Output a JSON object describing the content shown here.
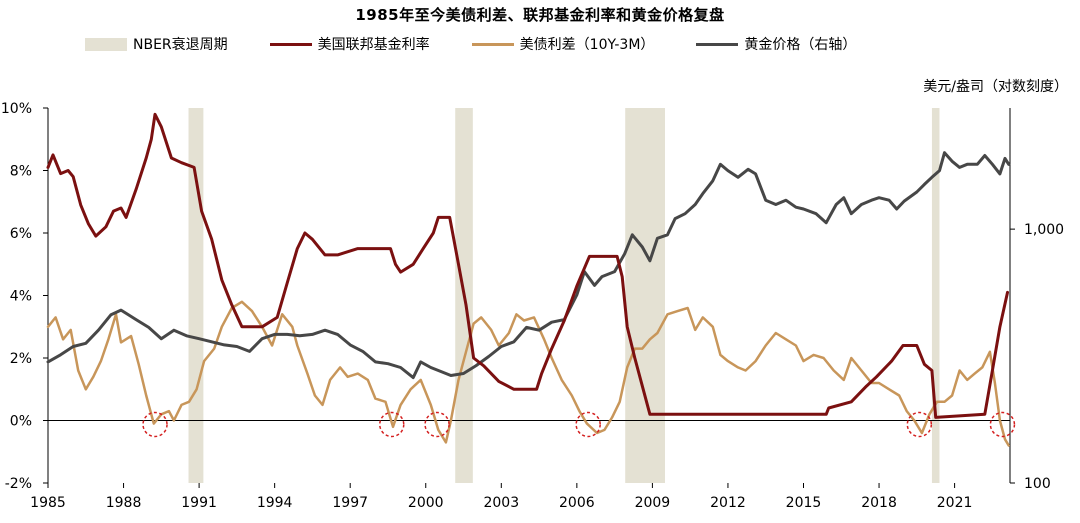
{
  "title": "1985年至今美债利差、联邦基金利率和黄金价格复盘",
  "legend": {
    "nber": "NBER衰退周期",
    "fedfunds": "美国联邦基金利率",
    "spread": "美债利差（10Y-3M）",
    "gold": "黄金价格（右轴）"
  },
  "right_axis_unit": "美元/盎司（对数刻度）",
  "colors": {
    "nber": "#e4e1d3",
    "fedfunds": "#7b1010",
    "spread": "#c8965a",
    "gold": "#474747",
    "circle": "#d42020"
  },
  "chart_data": {
    "type": "line",
    "title": "1985年至今美债利差、联邦基金利率和黄金价格复盘",
    "x_range": [
      1985,
      2023.2
    ],
    "x_ticks": [
      "1985",
      "1988",
      "1991",
      "1994",
      "1997",
      "2000",
      "2003",
      "2006",
      "2009",
      "2012",
      "2015",
      "2018",
      "2021"
    ],
    "y_left": {
      "range": [
        -2,
        10
      ],
      "unit": "%",
      "ticks": [
        "10%",
        "8%",
        "6%",
        "4%",
        "2%",
        "0%",
        "-2%"
      ]
    },
    "y_right": {
      "range": [
        100,
        3000
      ],
      "scale": "log",
      "ticks": [
        "1,000",
        "100"
      ]
    },
    "recessions": [
      [
        1990.58,
        1991.17
      ],
      [
        2001.17,
        2001.87
      ],
      [
        2007.92,
        2009.5
      ],
      [
        2020.1,
        2020.4
      ]
    ],
    "inversion_circles": [
      1989.25,
      1998.65,
      2000.45,
      2006.45,
      2019.6,
      2022.9
    ],
    "series": [
      {
        "name": "美国联邦基金利率",
        "axis": "left",
        "points": [
          [
            1985,
            8.1
          ],
          [
            1985.2,
            8.5
          ],
          [
            1985.5,
            7.9
          ],
          [
            1985.8,
            8.0
          ],
          [
            1986.0,
            7.8
          ],
          [
            1986.3,
            6.9
          ],
          [
            1986.6,
            6.3
          ],
          [
            1986.9,
            5.9
          ],
          [
            1987.3,
            6.2
          ],
          [
            1987.6,
            6.7
          ],
          [
            1987.9,
            6.8
          ],
          [
            1988.1,
            6.5
          ],
          [
            1988.5,
            7.4
          ],
          [
            1988.9,
            8.4
          ],
          [
            1989.1,
            9.0
          ],
          [
            1989.25,
            9.8
          ],
          [
            1989.5,
            9.4
          ],
          [
            1989.9,
            8.4
          ],
          [
            1990.3,
            8.25
          ],
          [
            1990.8,
            8.1
          ],
          [
            1991.1,
            6.7
          ],
          [
            1991.5,
            5.8
          ],
          [
            1991.9,
            4.5
          ],
          [
            1992.3,
            3.7
          ],
          [
            1992.7,
            3.0
          ],
          [
            1993.5,
            3.0
          ],
          [
            1994.1,
            3.3
          ],
          [
            1994.5,
            4.4
          ],
          [
            1994.9,
            5.5
          ],
          [
            1995.2,
            6.0
          ],
          [
            1995.5,
            5.8
          ],
          [
            1996.0,
            5.3
          ],
          [
            1996.5,
            5.3
          ],
          [
            1997.3,
            5.5
          ],
          [
            1998.6,
            5.5
          ],
          [
            1998.8,
            5.0
          ],
          [
            1999.0,
            4.75
          ],
          [
            1999.5,
            5.0
          ],
          [
            1999.9,
            5.5
          ],
          [
            2000.3,
            6.0
          ],
          [
            2000.5,
            6.5
          ],
          [
            2000.95,
            6.5
          ],
          [
            2001.3,
            5.0
          ],
          [
            2001.6,
            3.7
          ],
          [
            2001.9,
            2.0
          ],
          [
            2002.3,
            1.75
          ],
          [
            2002.9,
            1.25
          ],
          [
            2003.5,
            1.0
          ],
          [
            2004.4,
            1.0
          ],
          [
            2004.6,
            1.5
          ],
          [
            2005.0,
            2.3
          ],
          [
            2005.5,
            3.2
          ],
          [
            2006.0,
            4.3
          ],
          [
            2006.5,
            5.25
          ],
          [
            2007.6,
            5.25
          ],
          [
            2007.8,
            4.6
          ],
          [
            2008.0,
            3.0
          ],
          [
            2008.3,
            2.0
          ],
          [
            2008.9,
            0.2
          ],
          [
            2015.9,
            0.2
          ],
          [
            2016.0,
            0.4
          ],
          [
            2016.9,
            0.6
          ],
          [
            2017.5,
            1.1
          ],
          [
            2017.9,
            1.4
          ],
          [
            2018.5,
            1.9
          ],
          [
            2018.95,
            2.4
          ],
          [
            2019.5,
            2.4
          ],
          [
            2019.8,
            1.8
          ],
          [
            2020.1,
            1.6
          ],
          [
            2020.25,
            0.1
          ],
          [
            2022.2,
            0.2
          ],
          [
            2022.5,
            1.6
          ],
          [
            2022.8,
            3.0
          ],
          [
            2023.1,
            4.1
          ]
        ]
      },
      {
        "name": "美债利差（10Y-3M）",
        "axis": "left",
        "points": [
          [
            1985,
            3.0
          ],
          [
            1985.3,
            3.3
          ],
          [
            1985.6,
            2.6
          ],
          [
            1985.9,
            2.9
          ],
          [
            1986.2,
            1.6
          ],
          [
            1986.5,
            1.0
          ],
          [
            1986.8,
            1.4
          ],
          [
            1987.1,
            1.9
          ],
          [
            1987.4,
            2.6
          ],
          [
            1987.7,
            3.4
          ],
          [
            1987.9,
            2.5
          ],
          [
            1988.3,
            2.7
          ],
          [
            1988.6,
            1.8
          ],
          [
            1988.9,
            0.8
          ],
          [
            1989.2,
            -0.1
          ],
          [
            1989.5,
            0.2
          ],
          [
            1989.8,
            0.3
          ],
          [
            1990.0,
            0.0
          ],
          [
            1990.3,
            0.5
          ],
          [
            1990.6,
            0.6
          ],
          [
            1990.9,
            1.0
          ],
          [
            1991.2,
            1.9
          ],
          [
            1991.6,
            2.3
          ],
          [
            1991.9,
            3.0
          ],
          [
            1992.3,
            3.6
          ],
          [
            1992.7,
            3.8
          ],
          [
            1993.1,
            3.5
          ],
          [
            1993.5,
            3.0
          ],
          [
            1993.9,
            2.4
          ],
          [
            1994.3,
            3.4
          ],
          [
            1994.7,
            3.0
          ],
          [
            1994.9,
            2.4
          ],
          [
            1995.3,
            1.5
          ],
          [
            1995.6,
            0.8
          ],
          [
            1995.9,
            0.5
          ],
          [
            1996.2,
            1.3
          ],
          [
            1996.6,
            1.7
          ],
          [
            1996.9,
            1.4
          ],
          [
            1997.3,
            1.5
          ],
          [
            1997.7,
            1.3
          ],
          [
            1998.0,
            0.7
          ],
          [
            1998.4,
            0.6
          ],
          [
            1998.7,
            -0.2
          ],
          [
            1999.0,
            0.5
          ],
          [
            1999.4,
            1.0
          ],
          [
            1999.8,
            1.3
          ],
          [
            2000.2,
            0.5
          ],
          [
            2000.5,
            -0.3
          ],
          [
            2000.8,
            -0.7
          ],
          [
            2001.0,
            0.0
          ],
          [
            2001.3,
            1.3
          ],
          [
            2001.6,
            2.2
          ],
          [
            2001.9,
            3.1
          ],
          [
            2002.2,
            3.3
          ],
          [
            2002.6,
            2.9
          ],
          [
            2002.9,
            2.4
          ],
          [
            2003.3,
            2.8
          ],
          [
            2003.6,
            3.4
          ],
          [
            2003.9,
            3.2
          ],
          [
            2004.3,
            3.3
          ],
          [
            2004.7,
            2.6
          ],
          [
            2005.0,
            2.0
          ],
          [
            2005.4,
            1.3
          ],
          [
            2005.8,
            0.8
          ],
          [
            2006.1,
            0.3
          ],
          [
            2006.4,
            -0.1
          ],
          [
            2006.8,
            -0.4
          ],
          [
            2007.1,
            -0.3
          ],
          [
            2007.4,
            0.1
          ],
          [
            2007.7,
            0.6
          ],
          [
            2008.0,
            1.7
          ],
          [
            2008.3,
            2.3
          ],
          [
            2008.6,
            2.3
          ],
          [
            2008.9,
            2.6
          ],
          [
            2009.2,
            2.8
          ],
          [
            2009.6,
            3.4
          ],
          [
            2010.0,
            3.5
          ],
          [
            2010.4,
            3.6
          ],
          [
            2010.7,
            2.9
          ],
          [
            2011.0,
            3.3
          ],
          [
            2011.4,
            3.0
          ],
          [
            2011.7,
            2.1
          ],
          [
            2012.0,
            1.9
          ],
          [
            2012.4,
            1.7
          ],
          [
            2012.7,
            1.6
          ],
          [
            2013.1,
            1.9
          ],
          [
            2013.5,
            2.4
          ],
          [
            2013.9,
            2.8
          ],
          [
            2014.3,
            2.6
          ],
          [
            2014.7,
            2.4
          ],
          [
            2015.0,
            1.9
          ],
          [
            2015.4,
            2.1
          ],
          [
            2015.8,
            2.0
          ],
          [
            2016.2,
            1.6
          ],
          [
            2016.6,
            1.3
          ],
          [
            2016.9,
            2.0
          ],
          [
            2017.3,
            1.6
          ],
          [
            2017.7,
            1.2
          ],
          [
            2018.0,
            1.2
          ],
          [
            2018.4,
            1.0
          ],
          [
            2018.8,
            0.8
          ],
          [
            2019.1,
            0.3
          ],
          [
            2019.4,
            0.0
          ],
          [
            2019.7,
            -0.4
          ],
          [
            2020.0,
            0.2
          ],
          [
            2020.3,
            0.6
          ],
          [
            2020.6,
            0.6
          ],
          [
            2020.9,
            0.8
          ],
          [
            2021.2,
            1.6
          ],
          [
            2021.5,
            1.3
          ],
          [
            2021.8,
            1.5
          ],
          [
            2022.1,
            1.7
          ],
          [
            2022.4,
            2.2
          ],
          [
            2022.6,
            1.2
          ],
          [
            2022.8,
            0.0
          ],
          [
            2023.0,
            -0.6
          ],
          [
            2023.15,
            -0.8
          ]
        ]
      },
      {
        "name": "黄金价格（右轴）",
        "axis": "right",
        "points": [
          [
            1985,
            300
          ],
          [
            1985.5,
            320
          ],
          [
            1986.0,
            345
          ],
          [
            1986.5,
            355
          ],
          [
            1987.0,
            400
          ],
          [
            1987.5,
            460
          ],
          [
            1987.9,
            480
          ],
          [
            1988.5,
            440
          ],
          [
            1989.0,
            410
          ],
          [
            1989.5,
            370
          ],
          [
            1990.0,
            400
          ],
          [
            1990.5,
            380
          ],
          [
            1991.0,
            370
          ],
          [
            1991.5,
            360
          ],
          [
            1992.0,
            350
          ],
          [
            1992.5,
            345
          ],
          [
            1993.0,
            330
          ],
          [
            1993.5,
            370
          ],
          [
            1994.0,
            385
          ],
          [
            1994.5,
            385
          ],
          [
            1995.0,
            380
          ],
          [
            1995.5,
            385
          ],
          [
            1996.0,
            400
          ],
          [
            1996.5,
            385
          ],
          [
            1997.0,
            350
          ],
          [
            1997.5,
            330
          ],
          [
            1998.0,
            300
          ],
          [
            1998.5,
            295
          ],
          [
            1999.0,
            285
          ],
          [
            1999.5,
            260
          ],
          [
            1999.8,
            300
          ],
          [
            2000.2,
            285
          ],
          [
            2000.6,
            275
          ],
          [
            2001.0,
            265
          ],
          [
            2001.5,
            270
          ],
          [
            2002.0,
            290
          ],
          [
            2002.5,
            315
          ],
          [
            2003.0,
            345
          ],
          [
            2003.5,
            360
          ],
          [
            2004.0,
            410
          ],
          [
            2004.5,
            400
          ],
          [
            2005.0,
            430
          ],
          [
            2005.5,
            440
          ],
          [
            2006.0,
            550
          ],
          [
            2006.3,
            680
          ],
          [
            2006.7,
            600
          ],
          [
            2007.0,
            650
          ],
          [
            2007.5,
            680
          ],
          [
            2007.9,
            800
          ],
          [
            2008.2,
            950
          ],
          [
            2008.6,
            850
          ],
          [
            2008.9,
            750
          ],
          [
            2009.2,
            920
          ],
          [
            2009.6,
            950
          ],
          [
            2009.9,
            1100
          ],
          [
            2010.3,
            1150
          ],
          [
            2010.7,
            1250
          ],
          [
            2011.0,
            1380
          ],
          [
            2011.4,
            1550
          ],
          [
            2011.7,
            1800
          ],
          [
            2012.0,
            1700
          ],
          [
            2012.4,
            1600
          ],
          [
            2012.8,
            1720
          ],
          [
            2013.1,
            1650
          ],
          [
            2013.5,
            1300
          ],
          [
            2013.9,
            1250
          ],
          [
            2014.3,
            1300
          ],
          [
            2014.7,
            1220
          ],
          [
            2015.0,
            1200
          ],
          [
            2015.5,
            1150
          ],
          [
            2015.9,
            1060
          ],
          [
            2016.3,
            1250
          ],
          [
            2016.6,
            1330
          ],
          [
            2016.9,
            1150
          ],
          [
            2017.3,
            1250
          ],
          [
            2017.7,
            1300
          ],
          [
            2018.0,
            1330
          ],
          [
            2018.4,
            1300
          ],
          [
            2018.7,
            1200
          ],
          [
            2019.0,
            1290
          ],
          [
            2019.5,
            1400
          ],
          [
            2019.8,
            1500
          ],
          [
            2020.1,
            1600
          ],
          [
            2020.4,
            1700
          ],
          [
            2020.6,
            2000
          ],
          [
            2020.9,
            1850
          ],
          [
            2021.2,
            1750
          ],
          [
            2021.5,
            1800
          ],
          [
            2021.9,
            1800
          ],
          [
            2022.2,
            1950
          ],
          [
            2022.5,
            1800
          ],
          [
            2022.8,
            1650
          ],
          [
            2023.0,
            1900
          ],
          [
            2023.15,
            1800
          ]
        ]
      }
    ]
  }
}
